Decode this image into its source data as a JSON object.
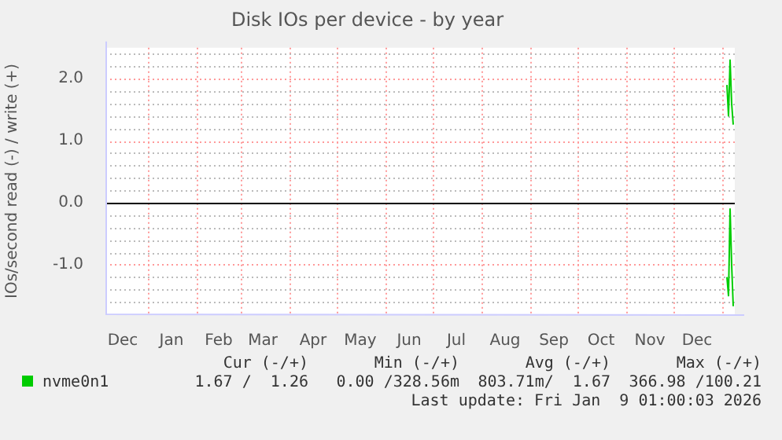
{
  "chart_data": {
    "type": "line",
    "title": "Disk IOs per device - by year",
    "ylabel": "IOs/second read (-) / write (+)",
    "xlim": [
      "2024-12-05",
      "2026-01-09"
    ],
    "xticks": [
      {
        "value": "2025-01-01",
        "label": null
      },
      {
        "value": "2025-02-01",
        "label": null
      },
      {
        "value": "2025-03-01",
        "label": null
      },
      {
        "value": "2025-04-01",
        "label": null
      },
      {
        "value": "2025-05-01",
        "label": null
      },
      {
        "value": "2025-06-01",
        "label": null
      },
      {
        "value": "2025-07-01",
        "label": null
      },
      {
        "value": "2025-08-01",
        "label": null
      },
      {
        "value": "2025-09-01",
        "label": null
      },
      {
        "value": "2025-10-01",
        "label": null
      },
      {
        "value": "2025-11-01",
        "label": null
      },
      {
        "value": "2025-12-01",
        "label": null
      },
      {
        "value": "2026-01-01",
        "label": null
      },
      {
        "value": "2024-12-16",
        "label": "Dec"
      },
      {
        "value": "2025-01-16",
        "label": "Jan"
      },
      {
        "value": "2025-02-15",
        "label": "Feb"
      },
      {
        "value": "2025-03-15",
        "label": "Mar"
      },
      {
        "value": "2025-04-16",
        "label": "Apr"
      },
      {
        "value": "2025-05-16",
        "label": "May"
      },
      {
        "value": "2025-06-16",
        "label": "Jun"
      },
      {
        "value": "2025-07-16",
        "label": "Jul"
      },
      {
        "value": "2025-08-16",
        "label": "Aug"
      },
      {
        "value": "2025-09-16",
        "label": "Sep"
      },
      {
        "value": "2025-10-16",
        "label": "Oct"
      },
      {
        "value": "2025-11-16",
        "label": "Nov"
      },
      {
        "value": "2025-12-16",
        "label": "Dec"
      }
    ],
    "ylim": [
      -1.8,
      2.5
    ],
    "yticks": [
      {
        "value": -1.6,
        "label": null
      },
      {
        "value": -1.4,
        "label": null
      },
      {
        "value": -1.2,
        "label": null
      },
      {
        "value": -1,
        "label": "-1.0"
      },
      {
        "value": -0.8,
        "label": null
      },
      {
        "value": -0.6,
        "label": null
      },
      {
        "value": -0.4,
        "label": null
      },
      {
        "value": -0.2,
        "label": null
      },
      {
        "value": 0,
        "label": "0.0"
      },
      {
        "value": 0.2,
        "label": null
      },
      {
        "value": 0.4,
        "label": null
      },
      {
        "value": 0.6,
        "label": null
      },
      {
        "value": 0.8,
        "label": null
      },
      {
        "value": 1,
        "label": "1.0"
      },
      {
        "value": 1.2,
        "label": null
      },
      {
        "value": 1.4,
        "label": null
      },
      {
        "value": 1.6,
        "label": null
      },
      {
        "value": 1.8,
        "label": null
      },
      {
        "value": 2,
        "label": "2.0"
      },
      {
        "value": 2.2,
        "label": null
      },
      {
        "value": 2.4,
        "label": null
      }
    ],
    "grid": true,
    "legend": "bottom",
    "marker": "none",
    "line_style": "solid",
    "ref_lines": [
      {
        "axis": "y",
        "value": 0,
        "color": "#000000"
      }
    ],
    "series": [
      {
        "name": "nvme0n1",
        "color": "#00cc00",
        "x": [
          "2026-01-04",
          "2026-01-05",
          "2026-01-06",
          "2026-01-07",
          "2026-01-08"
        ],
        "values": [
          1.9,
          1.4,
          2.3,
          1.6,
          1.26
        ]
      },
      {
        "color": "#00cc00",
        "x": [
          "2026-01-04",
          "2026-01-05",
          "2026-01-06",
          "2026-01-07",
          "2026-01-08"
        ],
        "values": [
          -1.2,
          -1.5,
          -0.1,
          -1.0,
          -1.67
        ]
      }
    ],
    "annotations": [
      "Cur (-/+)",
      "Min (-/+)",
      "Avg (-/+)",
      "Max (-/+)",
      "1.67 /  1.26",
      "0.00 /328.56m",
      "803.71m/  1.67",
      "366.98 /100.21",
      "Last update: Fri Jan  9 01:00:03 2026"
    ]
  }
}
